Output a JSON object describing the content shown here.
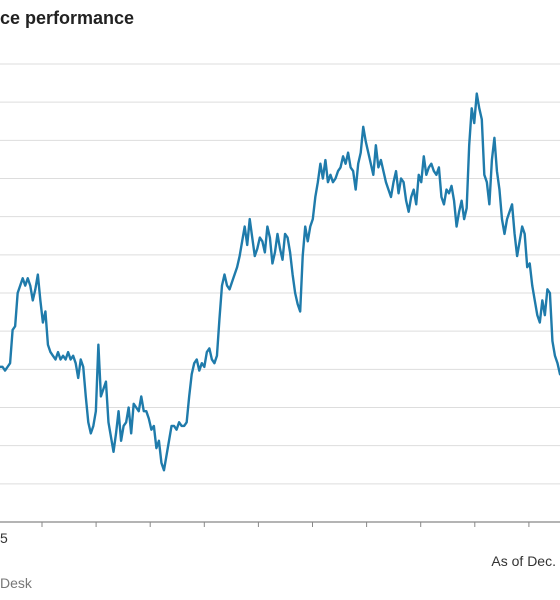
{
  "chart_data": {
    "type": "line",
    "title": "ce performance",
    "series": [
      {
        "color": "#1f7bab",
        "values": [
          30,
          30,
          29,
          30,
          31,
          40,
          41,
          50,
          52,
          54,
          52,
          54,
          52,
          48,
          51,
          55,
          48,
          42,
          45,
          36,
          34,
          33,
          32,
          34,
          32,
          33,
          32,
          34,
          32,
          33,
          31,
          27,
          32,
          30,
          22,
          15,
          12,
          14,
          18,
          36,
          22,
          24,
          26,
          15,
          11,
          7,
          12,
          18,
          10,
          14,
          15,
          19,
          12,
          20,
          19,
          18,
          22,
          18,
          18,
          16,
          13,
          14,
          8,
          10,
          4,
          2,
          6,
          10,
          14,
          14,
          13,
          15,
          14,
          14,
          15,
          22,
          28,
          31,
          32,
          29,
          31,
          30,
          34,
          35,
          32,
          31,
          33,
          43,
          52,
          55,
          52,
          51,
          53,
          55,
          57,
          60,
          64,
          68,
          63,
          70,
          65,
          60,
          62,
          65,
          64,
          61,
          68,
          65,
          58,
          61,
          66,
          62,
          59,
          66,
          65,
          61,
          55,
          50,
          47,
          45,
          60,
          68,
          64,
          68,
          70,
          76,
          80,
          85,
          81,
          86,
          80,
          82,
          80,
          81,
          83,
          84,
          87,
          85,
          88,
          84,
          83,
          78,
          85,
          88,
          95,
          91,
          88,
          85,
          82,
          90,
          84,
          86,
          83,
          80,
          78,
          76,
          80,
          83,
          77,
          81,
          80,
          75,
          72,
          76,
          78,
          74,
          82,
          80,
          87,
          82,
          84,
          85,
          83,
          82,
          84,
          76,
          74,
          78,
          77,
          79,
          75,
          68,
          72,
          75,
          70,
          73,
          90,
          100,
          96,
          104,
          100,
          97,
          82,
          80,
          74,
          86,
          92,
          83,
          78,
          70,
          66,
          70,
          72,
          74,
          66,
          60,
          64,
          68,
          66,
          57,
          58,
          52,
          48,
          44,
          42,
          48,
          44,
          51,
          50,
          37,
          33,
          31,
          28
        ]
      }
    ],
    "x_tick_count": 10,
    "x_tick_label_first": "5",
    "ylim": [
      -12,
      112
    ],
    "y_gridline_count": 13,
    "grid": true
  },
  "footer": {
    "asof": "As of Dec.",
    "source": "Desk"
  }
}
